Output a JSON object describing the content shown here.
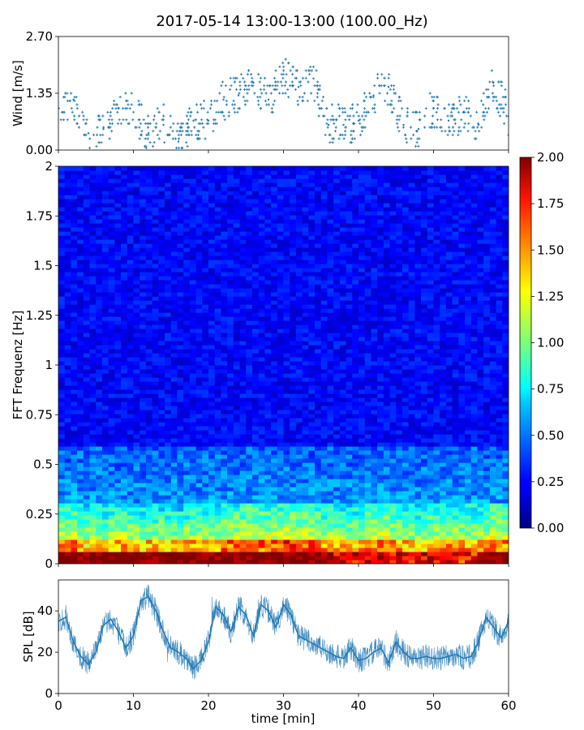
{
  "title": "2017-05-14 13:00-13:00 (100.00_Hz)",
  "chart_data": [
    {
      "id": "wind",
      "type": "scatter",
      "ylabel": "Wind [m/s]",
      "xlabel": "",
      "xlim": [
        0,
        60
      ],
      "ylim": [
        0,
        2.7
      ],
      "yticks": [
        "0.00",
        "1.35",
        "2.70"
      ],
      "color": "#1f77b4",
      "x": [
        0,
        2,
        4,
        6,
        8,
        10,
        12,
        14,
        16,
        18,
        20,
        22,
        24,
        26,
        28,
        30,
        32,
        34,
        36,
        38,
        40,
        42,
        44,
        46,
        48,
        50,
        52,
        54,
        56,
        58,
        60
      ],
      "y": [
        1.0,
        1.2,
        0.4,
        0.5,
        1.0,
        0.9,
        0.4,
        0.6,
        0.2,
        0.7,
        0.7,
        1.2,
        1.3,
        1.6,
        1.2,
        1.8,
        1.5,
        1.7,
        0.6,
        0.6,
        0.7,
        1.3,
        1.5,
        0.6,
        0.5,
        1.0,
        0.7,
        0.9,
        0.6,
        1.6,
        0.8
      ]
    },
    {
      "id": "spectrogram",
      "type": "heatmap",
      "ylabel": "FFT Frequenz [Hz]",
      "xlabel": "",
      "xlim": [
        0,
        60
      ],
      "ylim": [
        0,
        2
      ],
      "yticks": [
        "0",
        "0.25",
        "0.5",
        "0.75",
        "1",
        "1.25",
        "1.5",
        "1.75",
        "2"
      ],
      "colorscale": "jet",
      "colorbar": {
        "range": [
          0,
          2
        ],
        "ticks": [
          "0.00",
          "0.25",
          "0.50",
          "0.75",
          "1.00",
          "1.25",
          "1.50",
          "1.75",
          "2.00"
        ]
      }
    },
    {
      "id": "spl",
      "type": "line",
      "ylabel": "SPL [dB]",
      "xlabel": "time [min]",
      "xlim": [
        0,
        60
      ],
      "ylim": [
        0,
        55
      ],
      "yticks": [
        "0",
        "20",
        "40"
      ],
      "xticks": [
        "0",
        "10",
        "20",
        "30",
        "40",
        "50",
        "60"
      ],
      "color": "#1f77b4",
      "x": [
        0,
        1,
        2,
        3,
        4,
        5,
        6,
        7,
        8,
        9,
        10,
        11,
        12,
        13,
        14,
        15,
        16,
        17,
        18,
        19,
        20,
        21,
        22,
        23,
        24,
        25,
        26,
        27,
        28,
        29,
        30,
        31,
        32,
        33,
        34,
        35,
        36,
        37,
        38,
        39,
        40,
        41,
        42,
        43,
        44,
        45,
        46,
        47,
        48,
        49,
        50,
        51,
        52,
        53,
        54,
        55,
        56,
        57,
        58,
        59,
        60
      ],
      "y": [
        35,
        37,
        25,
        18,
        14,
        20,
        33,
        36,
        30,
        22,
        28,
        45,
        47,
        40,
        30,
        22,
        20,
        17,
        12,
        16,
        25,
        42,
        38,
        30,
        42,
        38,
        28,
        43,
        40,
        32,
        43,
        38,
        28,
        26,
        24,
        22,
        20,
        18,
        17,
        22,
        16,
        17,
        20,
        22,
        15,
        25,
        20,
        17,
        17,
        18,
        17,
        17,
        18,
        19,
        17,
        18,
        25,
        37,
        32,
        27,
        35
      ]
    }
  ]
}
